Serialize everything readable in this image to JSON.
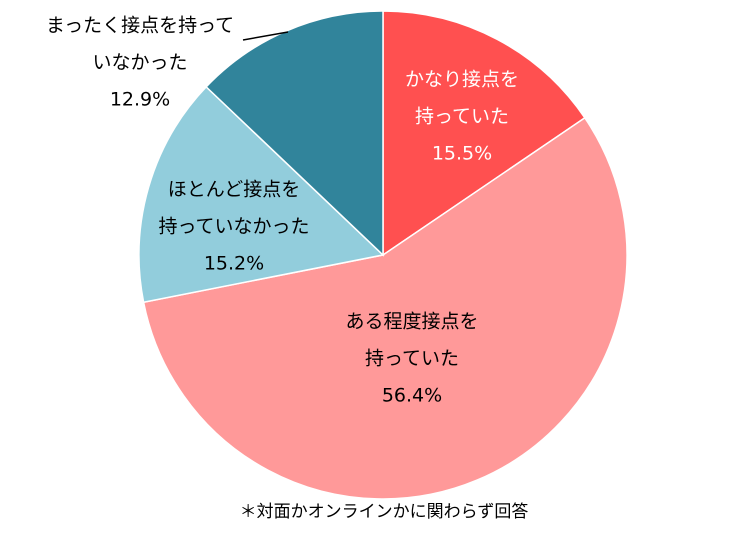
{
  "chart_data": {
    "type": "pie",
    "start_angle_deg": 0,
    "direction": "clockwise",
    "slices": [
      {
        "label_lines": [
          "かなり接点を",
          "持っていた"
        ],
        "value": 15.5,
        "value_label": "15.5%",
        "color": "#FF5050",
        "text_color": "#FFFFFF"
      },
      {
        "label_lines": [
          "ある程度接点を",
          "持っていた"
        ],
        "value": 56.4,
        "value_label": "56.4%",
        "color": "#FF9999",
        "text_color": "#000000"
      },
      {
        "label_lines": [
          "ほとんど接点を",
          "持っていなかった"
        ],
        "value": 15.2,
        "value_label": "15.2%",
        "color": "#92CDDC",
        "text_color": "#000000"
      },
      {
        "label_lines": [
          "まったく接点を持って",
          "いなかった"
        ],
        "value": 12.9,
        "value_label": "12.9%",
        "color": "#31849B",
        "text_color": "#000000"
      }
    ],
    "footnote": "＊対面かオンラインかに関わらず回答"
  }
}
